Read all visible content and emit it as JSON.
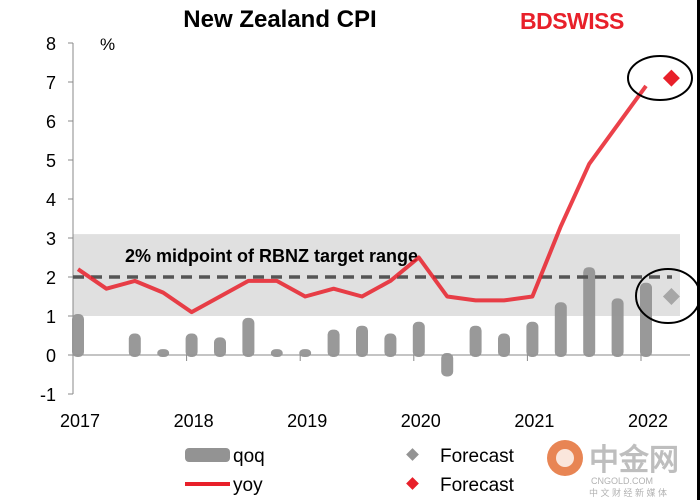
{
  "header": {
    "title": "New Zealand CPI",
    "logo_text": "BDSWISS"
  },
  "watermark": {
    "main": "中金网",
    "domain": "CNGOLD.COM",
    "tagline": "中 文 财 经 新 媒 体"
  },
  "chart_data": {
    "type": "bar+line",
    "title": "New Zealand CPI",
    "ylabel": "%",
    "ylim": [
      -1,
      8
    ],
    "yticks": [
      "-1",
      "0",
      "1",
      "2",
      "3",
      "4",
      "5",
      "6",
      "7",
      "8"
    ],
    "xticks": [
      "2017",
      "2018",
      "2019",
      "2020",
      "2021",
      "2022"
    ],
    "categories": [
      "2017Q1",
      "2017Q2",
      "2017Q3",
      "2017Q4",
      "2018Q1",
      "2018Q2",
      "2018Q3",
      "2018Q4",
      "2019Q1",
      "2019Q2",
      "2019Q3",
      "2019Q4",
      "2020Q1",
      "2020Q2",
      "2020Q3",
      "2020Q4",
      "2021Q1",
      "2021Q2",
      "2021Q3",
      "2021Q4",
      "2022Q1"
    ],
    "series": [
      {
        "name": "qoq",
        "type": "bar",
        "color": "#939393",
        "values": [
          1.0,
          0.0,
          0.5,
          0.1,
          0.5,
          0.4,
          0.9,
          0.1,
          0.1,
          0.6,
          0.7,
          0.5,
          0.8,
          -0.5,
          0.7,
          0.5,
          0.8,
          1.3,
          2.2,
          1.4,
          1.8
        ]
      },
      {
        "name": "yoy",
        "type": "line",
        "color": "#e8202a",
        "values": [
          2.2,
          1.7,
          1.9,
          1.6,
          1.1,
          1.5,
          1.9,
          1.9,
          1.5,
          1.7,
          1.5,
          1.9,
          2.5,
          1.5,
          1.4,
          1.4,
          1.5,
          3.3,
          4.9,
          5.9,
          6.9
        ]
      }
    ],
    "forecasts": [
      {
        "name": "Forecast",
        "series": "qoq",
        "category": "2022Q1f",
        "value": 1.5,
        "color": "#a6a6a6"
      },
      {
        "name": "Forecast",
        "series": "yoy",
        "category": "2022Q1f",
        "value": 7.1,
        "color": "#e8202a"
      }
    ],
    "target_band": {
      "low": 1,
      "high": 3,
      "midpoint": 2,
      "label": "2% midpoint of RBNZ target range",
      "color": "#e0e0e0"
    },
    "legend": [
      {
        "label": "qoq",
        "swatch": "bar"
      },
      {
        "label": "yoy",
        "swatch": "line"
      },
      {
        "label": "Forecast",
        "swatch": "grey-diamond"
      },
      {
        "label": "Forecast",
        "swatch": "red-diamond"
      }
    ],
    "legend_position": "bottom"
  }
}
